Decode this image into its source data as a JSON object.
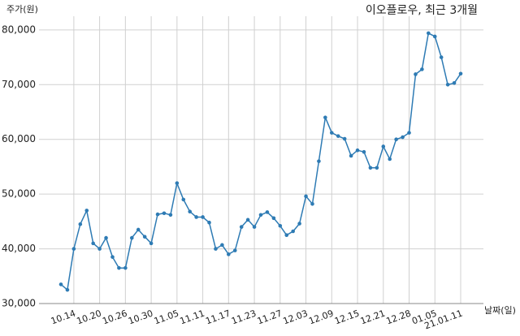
{
  "chart_data": {
    "type": "line",
    "title": "이오플로우, 최근 3개월",
    "y_label": "주가(원)",
    "x_label": "날짜(일)",
    "categories": [
      null,
      null,
      "10.14",
      null,
      null,
      null,
      "10.20",
      null,
      null,
      null,
      "10.26",
      null,
      null,
      null,
      "10.30",
      null,
      null,
      null,
      "11.05",
      null,
      null,
      null,
      "11.11",
      null,
      null,
      null,
      "11.17",
      null,
      null,
      null,
      "11.23",
      null,
      null,
      null,
      "11.27",
      null,
      null,
      null,
      "12.03",
      null,
      null,
      null,
      "12.09",
      null,
      null,
      null,
      "12.15",
      null,
      null,
      null,
      "12.21",
      null,
      null,
      null,
      "12.28",
      null,
      null,
      null,
      "01.05",
      null,
      null,
      null,
      "21.01.11"
    ],
    "values": [
      33500,
      32500,
      40000,
      44500,
      47000,
      41000,
      40000,
      42000,
      38500,
      36500,
      36500,
      42000,
      43500,
      42200,
      41000,
      46300,
      46500,
      46200,
      52000,
      49000,
      46800,
      45800,
      45800,
      44800,
      40000,
      40700,
      39000,
      39700,
      44000,
      45300,
      44000,
      46200,
      46700,
      45600,
      44200,
      42500,
      43200,
      44600,
      49600,
      48200,
      56000,
      64000,
      61200,
      60600,
      60100,
      57000,
      58000,
      57700,
      54800,
      54800,
      58700,
      56400,
      60000,
      60400,
      61200,
      71900,
      72800,
      79400,
      78800,
      75000,
      70000,
      70300,
      72000
    ],
    "color": "#2e7bb4",
    "ylim": [
      30000,
      82500
    ],
    "yticks": [
      {
        "value": 30000,
        "label": "30,000"
      },
      {
        "value": 40000,
        "label": "40,000"
      },
      {
        "value": 50000,
        "label": "50,000"
      },
      {
        "value": 60000,
        "label": "60,000"
      },
      {
        "value": 70000,
        "label": "70,000"
      },
      {
        "value": 80000,
        "label": "80,000"
      }
    ],
    "grid": true
  }
}
